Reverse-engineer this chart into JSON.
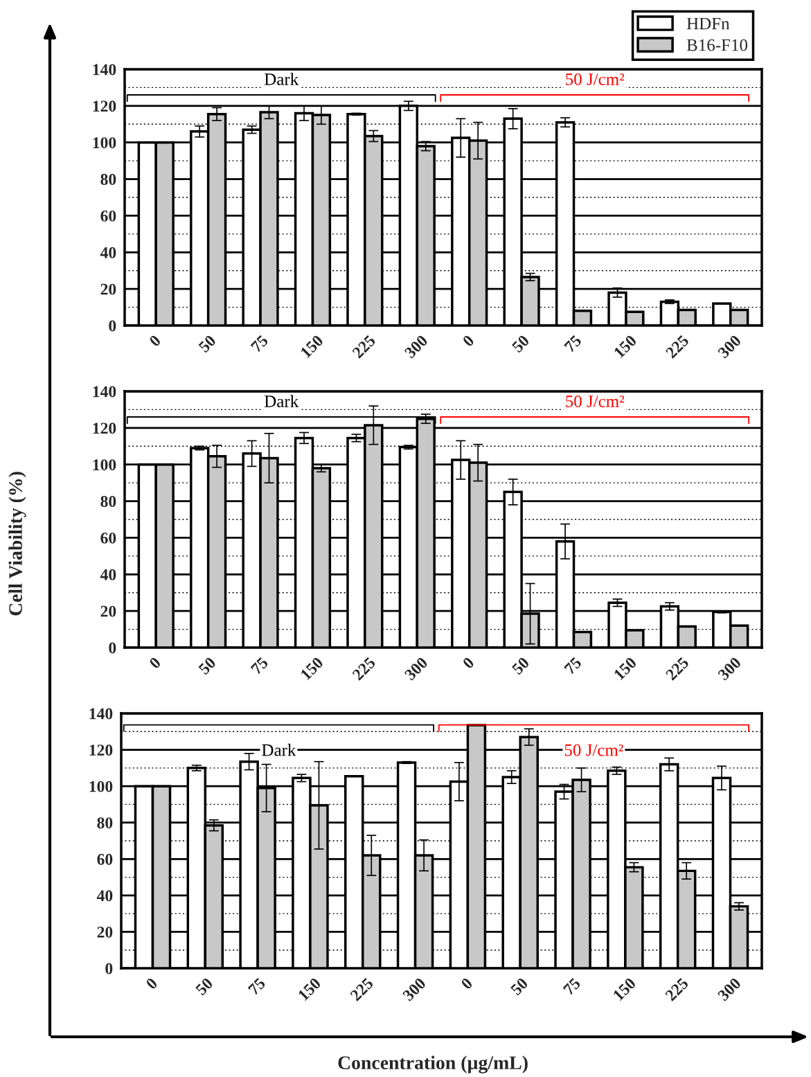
{
  "chart_data": [
    {
      "type": "bar",
      "legend": "top right",
      "grid": "y",
      "categories": [
        "0",
        "50",
        "75",
        "150",
        "225",
        "300",
        "0",
        "50",
        "75",
        "150",
        "225",
        "300"
      ],
      "ylim": [
        0,
        140
      ],
      "yticks": [
        0,
        {
          "value": 10,
          "label": null
        },
        20,
        {
          "value": 30,
          "label": null
        },
        40,
        {
          "value": 50,
          "label": null
        },
        60,
        {
          "value": 70,
          "label": null
        },
        80,
        {
          "value": 90,
          "label": null
        },
        100,
        {
          "value": 110,
          "label": null
        },
        120,
        {
          "value": 130,
          "label": null
        },
        140
      ],
      "annotations": [
        "Dark",
        "50 J/cm²"
      ],
      "series": [
        {
          "name": "HDFn",
          "color": "#ffffff",
          "values": [
            100,
            106,
            107,
            116,
            115.5,
            120,
            102.5,
            113,
            111,
            18,
            13,
            12
          ],
          "errors": [
            null,
            3,
            2,
            4,
            0.5,
            2.5,
            10.5,
            5.5,
            2.5,
            2.5,
            1,
            null
          ]
        },
        {
          "name": "B16-F10",
          "color": "#c8c8c8",
          "values": [
            100,
            115.5,
            116.5,
            115,
            103.5,
            98,
            101,
            26.5,
            8,
            7.5,
            8.5,
            8.5
          ],
          "errors": [
            null,
            3.5,
            3.5,
            5,
            3,
            2.5,
            10,
            2,
            null,
            null,
            null,
            null
          ]
        }
      ]
    },
    {
      "type": "bar",
      "grid": "y",
      "ylabel": "Cell Viability (%)",
      "categories": [
        "0",
        "50",
        "75",
        "150",
        "225",
        "300",
        "0",
        "50",
        "75",
        "150",
        "225",
        "300"
      ],
      "ylim": [
        0,
        140
      ],
      "yticks": [
        0,
        {
          "value": 10,
          "label": null
        },
        20,
        {
          "value": 30,
          "label": null
        },
        40,
        {
          "value": 50,
          "label": null
        },
        60,
        {
          "value": 70,
          "label": null
        },
        80,
        {
          "value": 90,
          "label": null
        },
        100,
        {
          "value": 110,
          "label": null
        },
        120,
        {
          "value": 130,
          "label": null
        },
        140
      ],
      "annotations": [
        "Dark",
        "50 J/cm²"
      ],
      "series": [
        {
          "color": "#ffffff",
          "values": [
            100,
            109,
            106,
            114.5,
            114.5,
            109.5,
            102.5,
            85,
            58,
            24.5,
            22.5,
            19.5
          ],
          "errors": [
            null,
            1,
            7,
            3,
            2,
            1,
            10.5,
            7,
            9.5,
            2,
            2,
            0.5
          ]
        },
        {
          "color": "#c8c8c8",
          "values": [
            100,
            104.5,
            103.5,
            98,
            121.5,
            125,
            101,
            18.5,
            8.5,
            9.5,
            11.5,
            12
          ],
          "errors": [
            null,
            6,
            13.5,
            2,
            10.5,
            2.5,
            10,
            16.5,
            null,
            null,
            null,
            null
          ]
        }
      ]
    },
    {
      "type": "bar",
      "grid": "y",
      "xlabel": "Concentration (µg/mL)",
      "categories": [
        "0",
        "50",
        "75",
        "150",
        "225",
        "300",
        "0",
        "50",
        "75",
        "150",
        "225",
        "300"
      ],
      "ylim": [
        0,
        140
      ],
      "yticks": [
        0,
        {
          "value": 10,
          "label": null
        },
        20,
        {
          "value": 30,
          "label": null
        },
        40,
        {
          "value": 50,
          "label": null
        },
        60,
        {
          "value": 70,
          "label": null
        },
        80,
        {
          "value": 90,
          "label": null
        },
        100,
        {
          "value": 110,
          "label": null
        },
        120,
        {
          "value": 130,
          "label": null
        },
        140
      ],
      "annotations": [
        "Dark",
        "50 J/cm²"
      ],
      "series": [
        {
          "color": "#ffffff",
          "values": [
            100,
            110,
            113.5,
            104.5,
            105.5,
            113,
            102.5,
            105,
            97,
            108.5,
            112,
            104.5
          ],
          "errors": [
            null,
            1.5,
            4.5,
            2,
            null,
            0.5,
            10.5,
            3.5,
            4,
            2,
            3.5,
            6.5
          ]
        },
        {
          "color": "#c8c8c8",
          "values": [
            100,
            78.5,
            99,
            89.5,
            62,
            62,
            133.5,
            127,
            103.5,
            55.5,
            53.5,
            34
          ],
          "errors": [
            null,
            3,
            13,
            24,
            11,
            8.5,
            null,
            4.5,
            6.5,
            2.5,
            4.5,
            2
          ]
        }
      ]
    }
  ]
}
